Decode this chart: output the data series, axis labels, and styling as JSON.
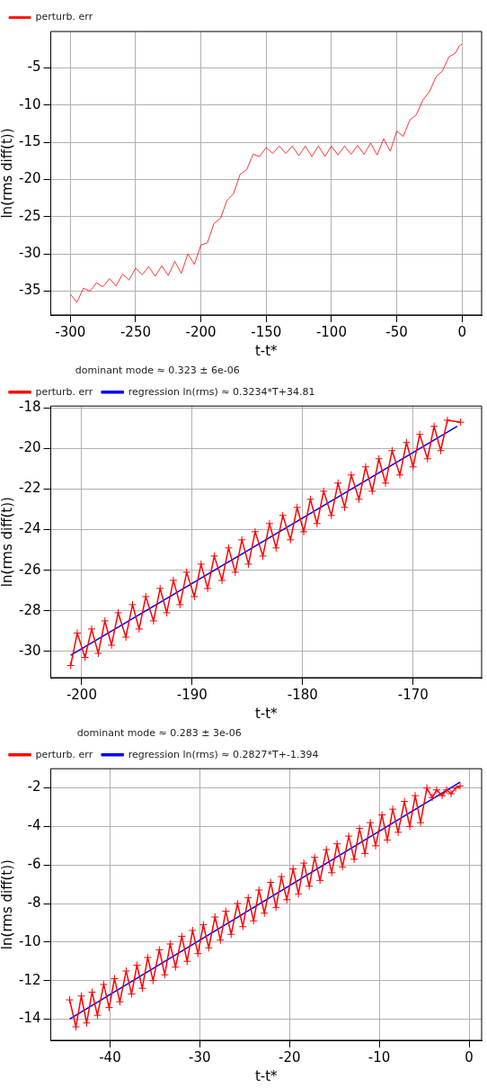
{
  "chart_data": [
    {
      "type": "line",
      "xlabel": "t-t*",
      "ylabel": "ln(rms diff(t))",
      "legend": "top left",
      "grid": true,
      "xlim": [
        -315,
        15
      ],
      "xticks": [
        -300,
        -250,
        -200,
        -150,
        -100,
        -50,
        0
      ],
      "ylim": [
        -38.2,
        -0.1
      ],
      "yticks": [
        -35,
        -30,
        -25,
        -20,
        -15,
        -10,
        -5
      ],
      "series": [
        {
          "name": "perturb. err",
          "color": "#ff0000",
          "marker": "none",
          "x": [
            -300,
            -295,
            -290,
            -285,
            -280,
            -275,
            -270,
            -265,
            -260,
            -255,
            -250,
            -245,
            -240,
            -235,
            -230,
            -225,
            -220,
            -215,
            -210,
            -205,
            -200,
            -195,
            -190,
            -185,
            -180,
            -175,
            -170,
            -165,
            -160,
            -155,
            -150,
            -145,
            -140,
            -135,
            -130,
            -125,
            -120,
            -115,
            -110,
            -105,
            -100,
            -95,
            -90,
            -85,
            -80,
            -75,
            -70,
            -65,
            -60,
            -55,
            -50,
            -45,
            -40,
            -35,
            -30,
            -25,
            -20,
            -15,
            -10,
            -5,
            -2,
            0
          ],
          "values": [
            -35.4,
            -36.5,
            -34.6,
            -35.0,
            -33.9,
            -34.4,
            -33.3,
            -34.3,
            -32.7,
            -33.5,
            -31.9,
            -32.8,
            -31.7,
            -33.0,
            -31.6,
            -32.9,
            -31.0,
            -32.6,
            -30.0,
            -31.4,
            -28.8,
            -28.5,
            -25.9,
            -25.2,
            -22.8,
            -21.9,
            -19.3,
            -18.7,
            -16.6,
            -16.9,
            -15.7,
            -16.5,
            -15.5,
            -16.5,
            -15.5,
            -16.8,
            -15.5,
            -16.9,
            -15.5,
            -16.9,
            -15.5,
            -16.7,
            -15.5,
            -16.6,
            -15.4,
            -16.6,
            -15.1,
            -16.7,
            -14.5,
            -16.2,
            -13.5,
            -14.2,
            -12.0,
            -11.3,
            -9.3,
            -8.2,
            -6.2,
            -5.4,
            -3.5,
            -3.0,
            -2.0,
            -1.8
          ]
        }
      ]
    },
    {
      "type": "line",
      "xlabel": "t-t*",
      "ylabel": "ln(rms diff(t))",
      "legend": "top left",
      "legend_title": "dominant mode ≈ 0.323 ± 6e-06",
      "grid": true,
      "xlim": [
        -202.8,
        -163.8
      ],
      "xticks": [
        -200,
        -190,
        -180,
        -170
      ],
      "ylim": [
        -31.3,
        -17.9
      ],
      "yticks": [
        -30,
        -28,
        -26,
        -24,
        -22,
        -20,
        -18
      ],
      "series": [
        {
          "name": "perturb. err",
          "color": "#ff0000",
          "marker": "cross",
          "x": [
            -201.0,
            -200.4,
            -199.7,
            -199.1,
            -198.5,
            -197.9,
            -197.3,
            -196.7,
            -196.0,
            -195.4,
            -194.8,
            -194.2,
            -193.5,
            -192.9,
            -192.3,
            -191.7,
            -191.1,
            -190.5,
            -189.8,
            -189.2,
            -188.6,
            -188.0,
            -187.3,
            -186.7,
            -186.1,
            -185.5,
            -184.9,
            -184.3,
            -183.6,
            -183.0,
            -182.4,
            -181.8,
            -181.1,
            -180.5,
            -179.9,
            -179.3,
            -178.7,
            -178.1,
            -177.4,
            -176.8,
            -176.2,
            -175.6,
            -174.9,
            -174.3,
            -173.7,
            -173.1,
            -172.5,
            -171.9,
            -171.2,
            -170.6,
            -170.0,
            -169.4,
            -168.7,
            -168.1,
            -167.5,
            -166.9,
            -165.7
          ],
          "values": [
            -30.7,
            -29.1,
            -30.3,
            -28.9,
            -30.1,
            -28.5,
            -29.7,
            -28.1,
            -29.3,
            -27.7,
            -28.9,
            -27.3,
            -28.5,
            -26.9,
            -28.1,
            -26.5,
            -27.7,
            -26.1,
            -27.3,
            -25.7,
            -26.9,
            -25.3,
            -26.5,
            -24.9,
            -26.1,
            -24.5,
            -25.7,
            -24.1,
            -25.3,
            -23.7,
            -24.9,
            -23.3,
            -24.5,
            -22.9,
            -24.1,
            -22.5,
            -23.7,
            -22.1,
            -23.3,
            -21.7,
            -22.9,
            -21.3,
            -22.5,
            -20.9,
            -22.1,
            -20.5,
            -21.7,
            -20.1,
            -21.3,
            -19.7,
            -20.9,
            -19.3,
            -20.5,
            -18.9,
            -20.1,
            -18.6,
            -18.7
          ]
        },
        {
          "name": "regression ln(rms) ≈ 0.3234*T+34.81",
          "color": "#0000ff",
          "marker": "none",
          "x": [
            -201.0,
            -166.0
          ],
          "values": [
            -30.2,
            -18.9
          ]
        }
      ]
    },
    {
      "type": "line",
      "xlabel": "t-t*",
      "ylabel": "ln(rms diff(t))",
      "legend": "top left",
      "legend_title": "dominant mode ≈ 0.283 ± 3e-06",
      "grid": true,
      "xlim": [
        -46.6,
        1.4
      ],
      "xticks": [
        -40,
        -30,
        -20,
        -10,
        0
      ],
      "ylim": [
        -15.1,
        -1.0
      ],
      "yticks": [
        -14,
        -12,
        -10,
        -8,
        -6,
        -4,
        -2
      ],
      "series": [
        {
          "name": "perturb. err",
          "color": "#ff0000",
          "marker": "cross",
          "x": [
            -44.5,
            -43.8,
            -43.2,
            -42.6,
            -42.0,
            -41.4,
            -40.7,
            -40.1,
            -39.5,
            -38.9,
            -38.2,
            -37.6,
            -37.0,
            -36.4,
            -35.8,
            -35.2,
            -34.5,
            -33.9,
            -33.3,
            -32.7,
            -32.0,
            -31.4,
            -30.8,
            -30.2,
            -29.6,
            -29.0,
            -28.3,
            -27.7,
            -27.1,
            -26.5,
            -25.8,
            -25.2,
            -24.6,
            -24.0,
            -23.4,
            -22.8,
            -22.1,
            -21.5,
            -20.9,
            -20.3,
            -19.6,
            -19.0,
            -18.4,
            -17.8,
            -17.2,
            -16.6,
            -15.9,
            -15.3,
            -14.7,
            -14.1,
            -13.4,
            -12.8,
            -12.2,
            -11.6,
            -11.0,
            -10.4,
            -9.7,
            -9.1,
            -8.5,
            -7.9,
            -7.2,
            -6.6,
            -6.0,
            -5.4,
            -4.7,
            -4.1,
            -3.6,
            -3.0,
            -2.5,
            -2.0,
            -1.5,
            -1.0
          ],
          "values": [
            -13.0,
            -14.4,
            -12.8,
            -14.2,
            -12.6,
            -13.8,
            -12.2,
            -13.4,
            -11.9,
            -13.1,
            -11.5,
            -12.7,
            -11.2,
            -12.4,
            -10.8,
            -12.0,
            -10.4,
            -11.7,
            -10.1,
            -11.3,
            -9.7,
            -11.0,
            -9.4,
            -10.6,
            -9.1,
            -10.3,
            -8.7,
            -9.9,
            -8.4,
            -9.6,
            -8.0,
            -9.2,
            -7.7,
            -8.9,
            -7.3,
            -8.5,
            -6.9,
            -8.2,
            -6.6,
            -7.8,
            -6.2,
            -7.5,
            -5.9,
            -7.1,
            -5.6,
            -6.8,
            -5.2,
            -6.4,
            -4.9,
            -6.1,
            -4.5,
            -5.7,
            -4.1,
            -5.4,
            -3.8,
            -5.0,
            -3.4,
            -4.7,
            -3.1,
            -4.3,
            -2.7,
            -4.0,
            -2.4,
            -3.8,
            -2.0,
            -2.5,
            -2.1,
            -2.4,
            -2.1,
            -2.3,
            -2.0,
            -1.9
          ]
        },
        {
          "name": "regression ln(rms) ≈ 0.2827*T+-1.394",
          "color": "#0000ff",
          "marker": "none",
          "x": [
            -44.5,
            -1.0
          ],
          "values": [
            -14.0,
            -1.7
          ]
        }
      ]
    }
  ]
}
